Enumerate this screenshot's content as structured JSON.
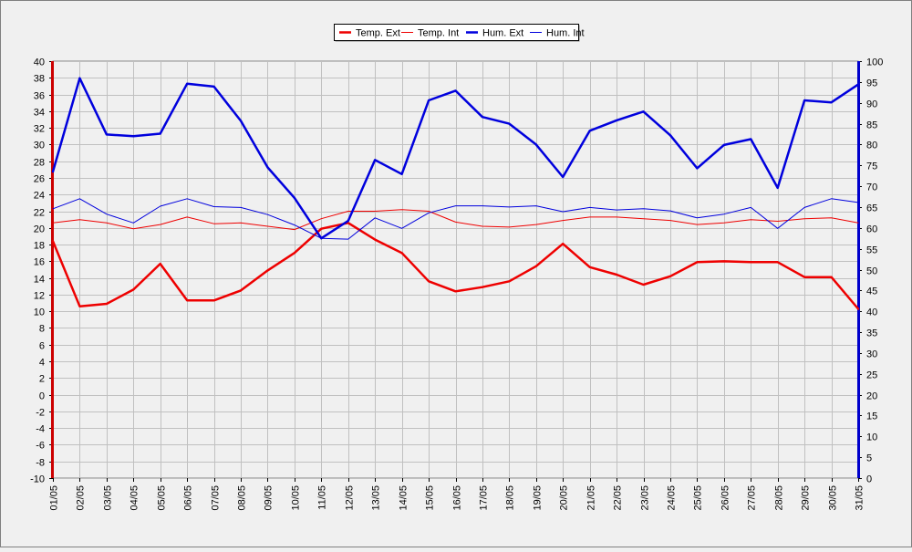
{
  "chart_data": {
    "type": "line",
    "categories": [
      "01/05",
      "02/05",
      "03/05",
      "04/05",
      "05/05",
      "06/05",
      "07/05",
      "08/05",
      "09/05",
      "10/05",
      "11/05",
      "12/05",
      "13/05",
      "14/05",
      "15/05",
      "16/05",
      "17/05",
      "18/05",
      "19/05",
      "20/05",
      "21/05",
      "22/05",
      "23/05",
      "24/05",
      "25/05",
      "26/05",
      "27/05",
      "28/05",
      "29/05",
      "30/05",
      "31/05"
    ],
    "y_left": {
      "min": -10,
      "max": 40,
      "step": 2,
      "color": "#cc0000"
    },
    "y_right": {
      "min": 0,
      "max": 100,
      "step": 5,
      "color": "#0000cc"
    },
    "grid": true,
    "legend_position": "top-center",
    "series": [
      {
        "name": "Temp. Ext",
        "axis": "left",
        "color": "#ee0000",
        "width": 2.5,
        "values": [
          18.4,
          10.6,
          10.9,
          12.6,
          15.7,
          11.3,
          11.3,
          12.5,
          14.9,
          17.0,
          19.9,
          20.6,
          18.6,
          17.0,
          13.6,
          12.4,
          12.9,
          13.6,
          15.4,
          18.1,
          15.3,
          14.4,
          13.2,
          14.2,
          15.9,
          16.0,
          15.9,
          15.9,
          14.1,
          14.1,
          10.3
        ]
      },
      {
        "name": "Temp. Int",
        "axis": "left",
        "color": "#ee0000",
        "width": 1,
        "values": [
          20.6,
          21.0,
          20.6,
          19.9,
          20.4,
          21.3,
          20.5,
          20.6,
          20.2,
          19.8,
          21.1,
          22.0,
          22.0,
          22.2,
          22.0,
          20.7,
          20.2,
          20.1,
          20.4,
          20.9,
          21.3,
          21.3,
          21.1,
          20.9,
          20.4,
          20.6,
          21.0,
          20.8,
          21.1,
          21.2,
          20.6
        ]
      },
      {
        "name": "Hum. Ext",
        "axis": "right",
        "color": "#0000dd",
        "width": 2.5,
        "values": [
          73.5,
          95.9,
          82.4,
          82.0,
          82.6,
          94.6,
          93.9,
          85.7,
          74.5,
          67.2,
          57.5,
          61.7,
          76.3,
          72.9,
          90.6,
          92.9,
          86.6,
          85.0,
          80.0,
          72.2,
          83.3,
          85.8,
          87.9,
          82.2,
          74.3,
          79.9,
          81.3,
          69.6,
          90.6,
          90.1,
          94.4
        ]
      },
      {
        "name": "Hum. Int",
        "axis": "right",
        "color": "#0000dd",
        "width": 1,
        "values": [
          64.6,
          67.0,
          63.3,
          61.2,
          65.2,
          67.0,
          65.1,
          64.9,
          63.2,
          60.7,
          57.5,
          57.3,
          62.4,
          59.9,
          63.6,
          65.3,
          65.3,
          65.0,
          65.3,
          63.9,
          64.9,
          64.3,
          64.6,
          64.1,
          62.4,
          63.3,
          64.9,
          59.9,
          64.9,
          67.0,
          66.1
        ]
      }
    ]
  }
}
